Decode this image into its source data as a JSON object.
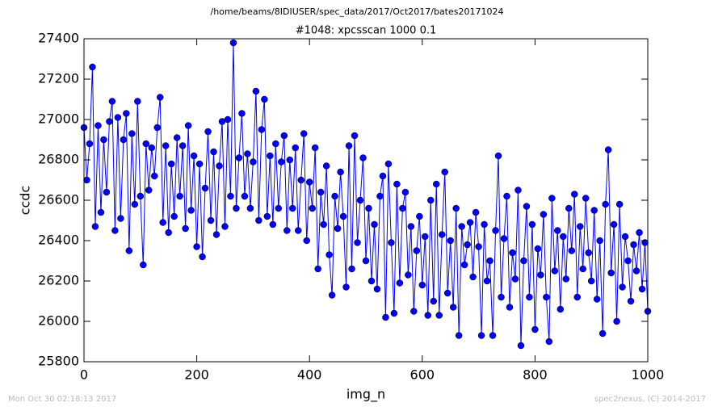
{
  "chart_data": {
    "type": "line",
    "suptitle": "/home/beams/8IDIUSER/spec_data/2017/Oct2017/bates20171024",
    "title": "#1048: xpcsscan 1000 0.1",
    "xlabel": "img_n",
    "ylabel": "ccdc",
    "footer_left": "Mon Oct 30 02:18:13 2017",
    "footer_right": "spec2nexus, (C) 2014-2017",
    "color": "#0000ff",
    "marker": true,
    "xlim": [
      0,
      1000
    ],
    "xticks": [
      0,
      200,
      400,
      600,
      800,
      1000
    ],
    "ylim": [
      25800,
      27400
    ],
    "yticks": [
      25800,
      26000,
      26200,
      26400,
      26600,
      26800,
      27000,
      27200,
      27400
    ],
    "x": [
      0,
      5,
      10,
      15,
      20,
      25,
      30,
      35,
      40,
      45,
      50,
      55,
      60,
      65,
      70,
      75,
      80,
      85,
      90,
      95,
      100,
      105,
      110,
      115,
      120,
      125,
      130,
      135,
      140,
      145,
      150,
      155,
      160,
      165,
      170,
      175,
      180,
      185,
      190,
      195,
      200,
      205,
      210,
      215,
      220,
      225,
      230,
      235,
      240,
      245,
      250,
      255,
      260,
      265,
      270,
      275,
      280,
      285,
      290,
      295,
      300,
      305,
      310,
      315,
      320,
      325,
      330,
      335,
      340,
      345,
      350,
      355,
      360,
      365,
      370,
      375,
      380,
      385,
      390,
      395,
      400,
      405,
      410,
      415,
      420,
      425,
      430,
      435,
      440,
      445,
      450,
      455,
      460,
      465,
      470,
      475,
      480,
      485,
      490,
      495,
      500,
      505,
      510,
      515,
      520,
      525,
      530,
      535,
      540,
      545,
      550,
      555,
      560,
      565,
      570,
      575,
      580,
      585,
      590,
      595,
      600,
      605,
      610,
      615,
      620,
      625,
      630,
      635,
      640,
      645,
      650,
      655,
      660,
      665,
      670,
      675,
      680,
      685,
      690,
      695,
      700,
      705,
      710,
      715,
      720,
      725,
      730,
      735,
      740,
      745,
      750,
      755,
      760,
      765,
      770,
      775,
      780,
      785,
      790,
      795,
      800,
      805,
      810,
      815,
      820,
      825,
      830,
      835,
      840,
      845,
      850,
      855,
      860,
      865,
      870,
      875,
      880,
      885,
      890,
      895,
      900,
      905,
      910,
      915,
      920,
      925,
      930,
      935,
      940,
      945,
      950,
      955,
      960,
      965,
      970,
      975,
      980,
      985,
      990,
      995,
      1000
    ],
    "values": [
      26960,
      26700,
      26880,
      27260,
      26470,
      26970,
      26540,
      26900,
      26640,
      26990,
      27090,
      26450,
      27010,
      26510,
      26900,
      27030,
      26350,
      26930,
      26580,
      27090,
      26620,
      26280,
      26880,
      26650,
      26860,
      26720,
      26960,
      27110,
      26490,
      26870,
      26440,
      26780,
      26520,
      26910,
      26620,
      26870,
      26460,
      26970,
      26550,
      26820,
      26370,
      26780,
      26320,
      26660,
      26940,
      26500,
      26840,
      26430,
      26770,
      26990,
      26470,
      27000,
      26620,
      27380,
      26560,
      26810,
      27030,
      26620,
      26830,
      26560,
      26790,
      27140,
      26500,
      26950,
      27100,
      26520,
      26820,
      26480,
      26880,
      26560,
      26790,
      26920,
      26450,
      26800,
      26560,
      26860,
      26450,
      26700,
      26930,
      26400,
      26690,
      26560,
      26860,
      26260,
      26640,
      26480,
      26770,
      26330,
      26130,
      26620,
      26460,
      26740,
      26520,
      26170,
      26870,
      26260,
      26920,
      26390,
      26600,
      26810,
      26300,
      26560,
      26200,
      26480,
      26160,
      26620,
      26720,
      26020,
      26780,
      26390,
      26040,
      26680,
      26190,
      26560,
      26640,
      26230,
      26470,
      26050,
      26350,
      26520,
      26180,
      26420,
      26030,
      26600,
      26100,
      26680,
      26030,
      26430,
      26740,
      26140,
      26400,
      26070,
      26560,
      25930,
      26470,
      26280,
      26380,
      26490,
      26220,
      26540,
      26370,
      25930,
      26480,
      26200,
      26300,
      25930,
      26450,
      26820,
      26120,
      26410,
      26620,
      26070,
      26340,
      26210,
      26650,
      25880,
      26300,
      26570,
      26120,
      26480,
      25960,
      26360,
      26230,
      26530,
      26120,
      25900,
      26610,
      26250,
      26450,
      26060,
      26420,
      26210,
      26560,
      26350,
      26630,
      26120,
      26470,
      26260,
      26610,
      26340,
      26200,
      26550,
      26110,
      26400,
      25940,
      26580,
      26850,
      26240,
      26480,
      26000,
      26580,
      26170,
      26420,
      26300,
      26100,
      26380,
      26250,
      26440,
      26160,
      26390,
      26050
    ]
  }
}
